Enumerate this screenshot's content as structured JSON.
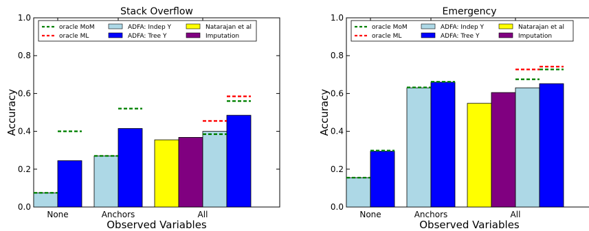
{
  "colors": {
    "indep": "#add8e6",
    "tree": "#0000ff",
    "natarajan": "#ffff00",
    "imputation": "#800080",
    "oracle_mom": "#008000",
    "oracle_ml": "#ff0000"
  },
  "legend": {
    "oracle_mom": "oracle MoM",
    "oracle_ml": "oracle ML",
    "indep": "ADFA: Indep Y",
    "tree": "ADFA: Tree Y",
    "natarajan": "Natarajan et al",
    "imputation": "Imputation"
  },
  "chart_data": [
    {
      "type": "bar",
      "title": "Stack Overflow",
      "xlabel": "Observed Variables",
      "ylabel": "Accuracy",
      "ylim": [
        0,
        1
      ],
      "yticks": [
        "0.0",
        "0.2",
        "0.4",
        "0.6",
        "0.8",
        "1.0"
      ],
      "categories": [
        "None",
        "Anchors",
        "All"
      ],
      "grid": false,
      "legend_position": "top",
      "series": [
        {
          "name": "ADFA: Indep Y",
          "color_key": "indep",
          "values": [
            0.075,
            0.27,
            0.4
          ]
        },
        {
          "name": "ADFA: Tree Y",
          "color_key": "tree",
          "values": [
            0.245,
            0.415,
            0.485
          ]
        },
        {
          "name": "Natarajan et al",
          "color_key": "natarajan",
          "values": [
            null,
            null,
            0.355
          ]
        },
        {
          "name": "Imputation",
          "color_key": "imputation",
          "values": [
            null,
            null,
            0.368
          ]
        }
      ],
      "oracle": {
        "oracle MoM": {
          "indep": [
            0.075,
            0.27,
            0.385
          ],
          "tree": [
            0.4,
            0.52,
            0.56
          ]
        },
        "oracle ML": {
          "indep": [
            null,
            null,
            0.455
          ],
          "tree": [
            null,
            null,
            0.585
          ]
        }
      }
    },
    {
      "type": "bar",
      "title": "Emergency",
      "xlabel": "Observed Variables",
      "ylabel": "Accuracy",
      "ylim": [
        0,
        1
      ],
      "yticks": [
        "0.0",
        "0.2",
        "0.4",
        "0.6",
        "0.8",
        "1.0"
      ],
      "categories": [
        "None",
        "Anchors",
        "All"
      ],
      "grid": false,
      "legend_position": "top",
      "series": [
        {
          "name": "ADFA: Indep Y",
          "color_key": "indep",
          "values": [
            0.155,
            0.63,
            0.63
          ]
        },
        {
          "name": "ADFA: Tree Y",
          "color_key": "tree",
          "values": [
            0.295,
            0.66,
            0.652
          ]
        },
        {
          "name": "Natarajan et al",
          "color_key": "natarajan",
          "values": [
            null,
            null,
            0.548
          ]
        },
        {
          "name": "Imputation",
          "color_key": "imputation",
          "values": [
            null,
            null,
            0.605
          ]
        }
      ],
      "oracle": {
        "oracle MoM": {
          "indep": [
            0.155,
            0.632,
            0.675
          ],
          "tree": [
            0.298,
            0.662,
            0.727
          ]
        },
        "oracle ML": {
          "indep": [
            null,
            null,
            0.727
          ],
          "tree": [
            null,
            null,
            0.742
          ]
        }
      }
    }
  ]
}
